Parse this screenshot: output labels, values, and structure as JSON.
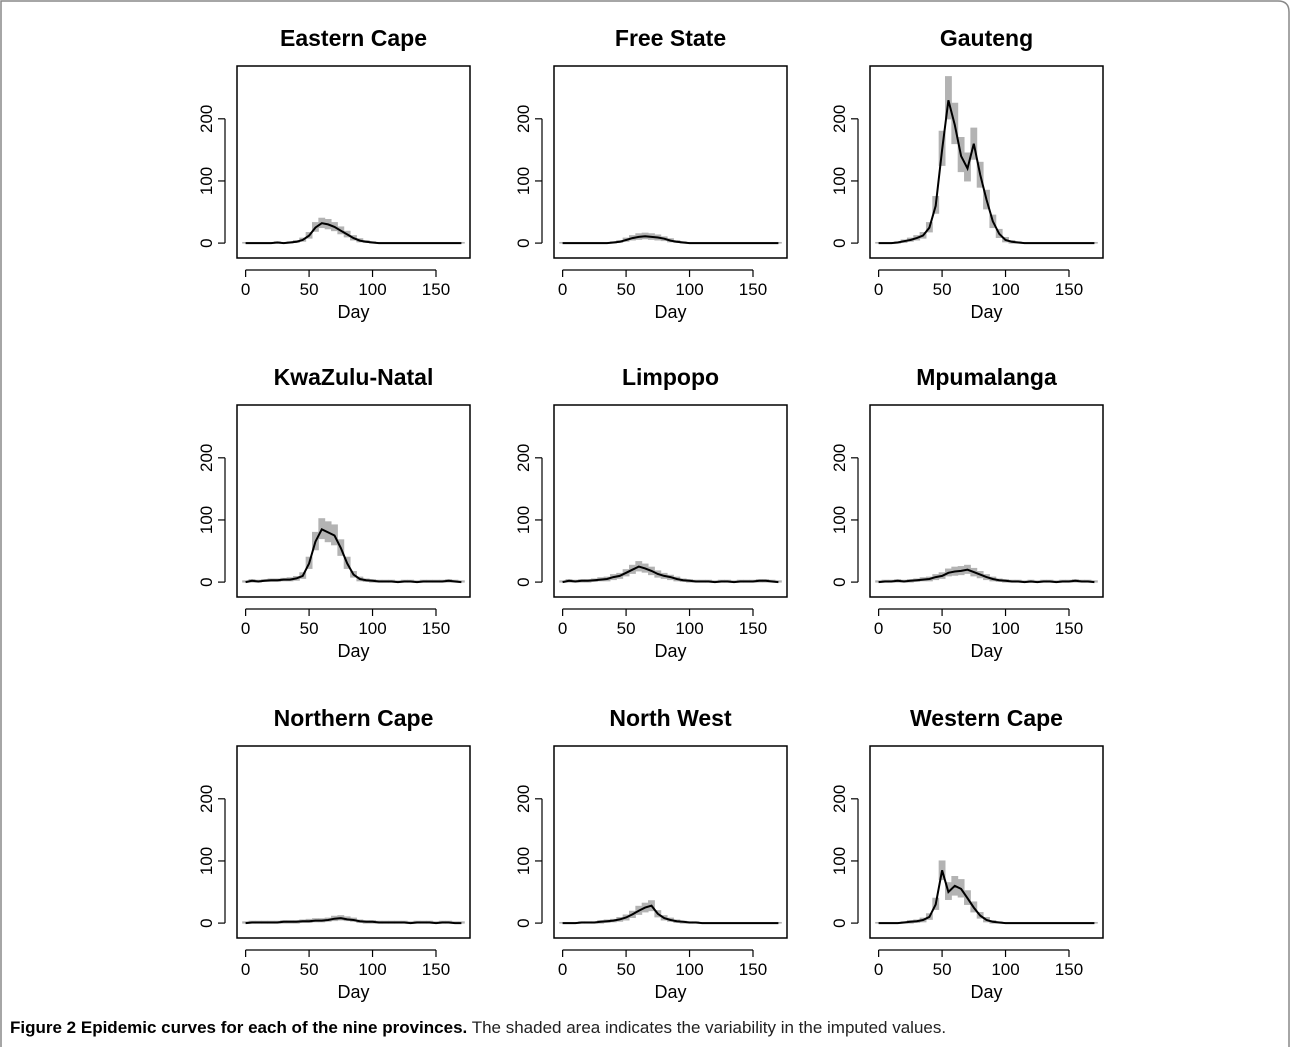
{
  "chart_data": [
    {
      "type": "line",
      "title": "Eastern Cape",
      "xlabel": "Day",
      "color": "#000000",
      "band_color": "#b3b3b3",
      "xlim": [
        -6.8,
        176.8
      ],
      "ylim": [
        -24,
        285
      ],
      "xticks": [
        0,
        50,
        100,
        150
      ],
      "yticks": [
        0,
        100,
        200
      ],
      "x": [
        0,
        5,
        10,
        15,
        20,
        25,
        30,
        35,
        40,
        45,
        50,
        55,
        60,
        65,
        70,
        75,
        80,
        85,
        90,
        95,
        100,
        105,
        110,
        115,
        120,
        125,
        130,
        135,
        140,
        145,
        150,
        155,
        160,
        165,
        170
      ],
      "values": [
        0,
        0,
        0,
        0,
        0,
        1,
        0,
        1,
        2,
        5,
        12,
        25,
        32,
        30,
        26,
        20,
        14,
        8,
        4,
        2,
        1,
        0,
        0,
        0,
        0,
        0,
        0,
        0,
        0,
        0,
        0,
        0,
        0,
        0,
        0
      ],
      "lower": [
        0,
        0,
        0,
        0,
        0,
        0,
        0,
        0,
        1,
        3,
        8,
        19,
        25,
        23,
        20,
        15,
        10,
        5,
        2,
        1,
        0,
        0,
        0,
        0,
        0,
        0,
        0,
        0,
        0,
        0,
        0,
        0,
        0,
        0,
        0
      ],
      "upper": [
        1,
        1,
        1,
        1,
        1,
        2,
        1,
        2,
        4,
        8,
        17,
        33,
        40,
        38,
        33,
        26,
        19,
        12,
        7,
        4,
        2,
        1,
        1,
        1,
        1,
        1,
        1,
        1,
        1,
        1,
        1,
        1,
        1,
        1,
        1
      ]
    },
    {
      "type": "line",
      "title": "Free State",
      "xlabel": "Day",
      "color": "#000000",
      "band_color": "#b3b3b3",
      "xlim": [
        -6.8,
        176.8
      ],
      "ylim": [
        -24,
        285
      ],
      "xticks": [
        0,
        50,
        100,
        150
      ],
      "yticks": [
        0,
        100,
        200
      ],
      "x": [
        0,
        5,
        10,
        15,
        20,
        25,
        30,
        35,
        40,
        45,
        50,
        55,
        60,
        65,
        70,
        75,
        80,
        85,
        90,
        95,
        100,
        105,
        110,
        115,
        120,
        125,
        130,
        135,
        140,
        145,
        150,
        155,
        160,
        165,
        170
      ],
      "values": [
        0,
        0,
        0,
        0,
        0,
        0,
        0,
        0,
        1,
        2,
        5,
        8,
        10,
        11,
        10,
        9,
        7,
        4,
        2,
        1,
        0,
        0,
        0,
        0,
        0,
        0,
        0,
        0,
        0,
        0,
        0,
        0,
        0,
        0,
        0
      ],
      "lower": [
        0,
        0,
        0,
        0,
        0,
        0,
        0,
        0,
        0,
        1,
        3,
        5,
        6,
        7,
        6,
        5,
        4,
        2,
        1,
        0,
        0,
        0,
        0,
        0,
        0,
        0,
        0,
        0,
        0,
        0,
        0,
        0,
        0,
        0,
        0
      ],
      "upper": [
        1,
        1,
        1,
        1,
        1,
        1,
        1,
        1,
        2,
        4,
        8,
        12,
        15,
        16,
        15,
        13,
        10,
        7,
        4,
        2,
        1,
        1,
        1,
        1,
        1,
        1,
        1,
        1,
        1,
        1,
        1,
        1,
        1,
        1,
        1
      ]
    },
    {
      "type": "line",
      "title": "Gauteng",
      "xlabel": "Day",
      "color": "#000000",
      "band_color": "#b3b3b3",
      "xlim": [
        -6.8,
        176.8
      ],
      "ylim": [
        -24,
        285
      ],
      "xticks": [
        0,
        50,
        100,
        150
      ],
      "yticks": [
        0,
        100,
        200
      ],
      "x": [
        0,
        5,
        10,
        15,
        20,
        25,
        30,
        35,
        40,
        45,
        50,
        55,
        60,
        65,
        70,
        75,
        80,
        85,
        90,
        95,
        100,
        105,
        110,
        115,
        120,
        125,
        130,
        135,
        140,
        145,
        150,
        155,
        160,
        165,
        170
      ],
      "values": [
        0,
        0,
        0,
        1,
        3,
        5,
        8,
        12,
        25,
        60,
        150,
        230,
        190,
        140,
        120,
        160,
        110,
        70,
        35,
        15,
        5,
        2,
        1,
        0,
        0,
        0,
        0,
        0,
        0,
        0,
        0,
        0,
        0,
        0,
        0
      ],
      "lower": [
        0,
        0,
        0,
        0,
        1,
        3,
        5,
        8,
        18,
        48,
        125,
        200,
        160,
        115,
        100,
        135,
        90,
        55,
        25,
        9,
        2,
        0,
        0,
        0,
        0,
        0,
        0,
        0,
        0,
        0,
        0,
        0,
        0,
        0,
        0
      ],
      "upper": [
        1,
        1,
        1,
        2,
        5,
        8,
        12,
        17,
        33,
        75,
        180,
        268,
        225,
        170,
        145,
        185,
        130,
        85,
        45,
        22,
        9,
        4,
        2,
        1,
        1,
        1,
        1,
        1,
        1,
        1,
        1,
        1,
        1,
        1,
        1
      ]
    },
    {
      "type": "line",
      "title": "KwaZulu-Natal",
      "xlabel": "Day",
      "color": "#000000",
      "band_color": "#b3b3b3",
      "xlim": [
        -6.8,
        176.8
      ],
      "ylim": [
        -24,
        285
      ],
      "xticks": [
        0,
        50,
        100,
        150
      ],
      "yticks": [
        0,
        100,
        200
      ],
      "x": [
        0,
        5,
        10,
        15,
        20,
        25,
        30,
        35,
        40,
        45,
        50,
        55,
        60,
        65,
        70,
        75,
        80,
        85,
        90,
        95,
        100,
        105,
        110,
        115,
        120,
        125,
        130,
        135,
        140,
        145,
        150,
        155,
        160,
        165,
        170
      ],
      "values": [
        0,
        2,
        1,
        2,
        3,
        3,
        4,
        4,
        6,
        10,
        30,
        65,
        85,
        80,
        75,
        55,
        30,
        12,
        5,
        3,
        2,
        1,
        1,
        1,
        0,
        1,
        1,
        0,
        1,
        1,
        1,
        1,
        2,
        1,
        0
      ],
      "lower": [
        0,
        0,
        0,
        1,
        1,
        1,
        2,
        2,
        3,
        6,
        22,
        52,
        70,
        65,
        60,
        43,
        22,
        8,
        2,
        1,
        0,
        0,
        0,
        0,
        0,
        0,
        0,
        0,
        0,
        0,
        0,
        0,
        0,
        0,
        0
      ],
      "upper": [
        2,
        4,
        3,
        4,
        5,
        5,
        6,
        7,
        9,
        15,
        40,
        80,
        102,
        97,
        92,
        68,
        40,
        17,
        8,
        5,
        4,
        3,
        3,
        3,
        2,
        3,
        3,
        2,
        3,
        3,
        3,
        3,
        4,
        3,
        2
      ]
    },
    {
      "type": "line",
      "title": "Limpopo",
      "xlabel": "Day",
      "color": "#000000",
      "band_color": "#b3b3b3",
      "xlim": [
        -6.8,
        176.8
      ],
      "ylim": [
        -24,
        285
      ],
      "xticks": [
        0,
        50,
        100,
        150
      ],
      "yticks": [
        0,
        100,
        200
      ],
      "x": [
        0,
        5,
        10,
        15,
        20,
        25,
        30,
        35,
        40,
        45,
        50,
        55,
        60,
        65,
        70,
        75,
        80,
        85,
        90,
        95,
        100,
        105,
        110,
        115,
        120,
        125,
        130,
        135,
        140,
        145,
        150,
        155,
        160,
        165,
        170
      ],
      "values": [
        0,
        2,
        1,
        2,
        2,
        3,
        4,
        5,
        8,
        10,
        15,
        20,
        25,
        22,
        18,
        13,
        10,
        8,
        5,
        3,
        2,
        1,
        1,
        1,
        0,
        1,
        1,
        0,
        1,
        1,
        1,
        2,
        2,
        1,
        0
      ],
      "lower": [
        0,
        0,
        0,
        0,
        0,
        1,
        2,
        2,
        4,
        6,
        10,
        14,
        18,
        16,
        12,
        8,
        6,
        4,
        2,
        1,
        0,
        0,
        0,
        0,
        0,
        0,
        0,
        0,
        0,
        0,
        0,
        0,
        0,
        0,
        0
      ],
      "upper": [
        2,
        4,
        3,
        4,
        4,
        5,
        7,
        8,
        12,
        14,
        20,
        27,
        33,
        29,
        24,
        18,
        14,
        11,
        8,
        5,
        4,
        3,
        3,
        3,
        2,
        3,
        3,
        2,
        3,
        3,
        3,
        4,
        4,
        3,
        2
      ]
    },
    {
      "type": "line",
      "title": "Mpumalanga",
      "xlabel": "Day",
      "color": "#000000",
      "band_color": "#b3b3b3",
      "xlim": [
        -6.8,
        176.8
      ],
      "ylim": [
        -24,
        285
      ],
      "xticks": [
        0,
        50,
        100,
        150
      ],
      "yticks": [
        0,
        100,
        200
      ],
      "x": [
        0,
        5,
        10,
        15,
        20,
        25,
        30,
        35,
        40,
        45,
        50,
        55,
        60,
        65,
        70,
        75,
        80,
        85,
        90,
        95,
        100,
        105,
        110,
        115,
        120,
        125,
        130,
        135,
        140,
        145,
        150,
        155,
        160,
        165,
        170
      ],
      "values": [
        0,
        1,
        1,
        2,
        1,
        2,
        3,
        4,
        5,
        8,
        10,
        15,
        17,
        18,
        20,
        16,
        12,
        8,
        5,
        3,
        2,
        1,
        1,
        0,
        1,
        0,
        1,
        1,
        0,
        1,
        1,
        2,
        1,
        1,
        0
      ],
      "lower": [
        0,
        0,
        0,
        0,
        0,
        0,
        1,
        2,
        2,
        4,
        6,
        10,
        11,
        12,
        14,
        10,
        7,
        4,
        2,
        1,
        0,
        0,
        0,
        0,
        0,
        0,
        0,
        0,
        0,
        0,
        0,
        0,
        0,
        0,
        0
      ],
      "upper": [
        2,
        3,
        3,
        4,
        3,
        4,
        5,
        7,
        8,
        12,
        15,
        21,
        24,
        25,
        27,
        22,
        17,
        12,
        8,
        5,
        4,
        3,
        3,
        2,
        3,
        2,
        3,
        3,
        2,
        3,
        3,
        4,
        3,
        3,
        2
      ]
    },
    {
      "type": "line",
      "title": "Northern Cape",
      "xlabel": "Day",
      "color": "#000000",
      "band_color": "#b3b3b3",
      "xlim": [
        -6.8,
        176.8
      ],
      "ylim": [
        -24,
        285
      ],
      "xticks": [
        0,
        50,
        100,
        150
      ],
      "yticks": [
        0,
        100,
        200
      ],
      "x": [
        0,
        5,
        10,
        15,
        20,
        25,
        30,
        35,
        40,
        45,
        50,
        55,
        60,
        65,
        70,
        75,
        80,
        85,
        90,
        95,
        100,
        105,
        110,
        115,
        120,
        125,
        130,
        135,
        140,
        145,
        150,
        155,
        160,
        165,
        170
      ],
      "values": [
        0,
        1,
        1,
        1,
        1,
        1,
        2,
        2,
        2,
        3,
        3,
        4,
        4,
        5,
        7,
        8,
        6,
        5,
        3,
        2,
        2,
        1,
        1,
        1,
        1,
        1,
        0,
        1,
        1,
        1,
        0,
        1,
        1,
        0,
        0
      ],
      "lower": [
        0,
        0,
        0,
        0,
        0,
        0,
        0,
        0,
        0,
        1,
        1,
        2,
        2,
        3,
        4,
        5,
        4,
        3,
        1,
        0,
        0,
        0,
        0,
        0,
        0,
        0,
        0,
        0,
        0,
        0,
        0,
        0,
        0,
        0,
        0
      ],
      "upper": [
        2,
        3,
        3,
        3,
        3,
        3,
        4,
        4,
        4,
        5,
        6,
        7,
        7,
        8,
        11,
        12,
        10,
        8,
        5,
        4,
        4,
        3,
        3,
        3,
        3,
        3,
        2,
        3,
        3,
        3,
        2,
        3,
        3,
        2,
        2
      ]
    },
    {
      "type": "line",
      "title": "North West",
      "xlabel": "Day",
      "color": "#000000",
      "band_color": "#b3b3b3",
      "xlim": [
        -6.8,
        176.8
      ],
      "ylim": [
        -24,
        285
      ],
      "xticks": [
        0,
        50,
        100,
        150
      ],
      "yticks": [
        0,
        100,
        200
      ],
      "x": [
        0,
        5,
        10,
        15,
        20,
        25,
        30,
        35,
        40,
        45,
        50,
        55,
        60,
        65,
        70,
        75,
        80,
        85,
        90,
        95,
        100,
        105,
        110,
        115,
        120,
        125,
        130,
        135,
        140,
        145,
        150,
        155,
        160,
        165,
        170
      ],
      "values": [
        0,
        0,
        0,
        1,
        1,
        1,
        2,
        3,
        4,
        6,
        9,
        14,
        20,
        25,
        28,
        15,
        8,
        5,
        3,
        2,
        1,
        1,
        0,
        0,
        0,
        0,
        0,
        0,
        0,
        0,
        0,
        0,
        0,
        0,
        0
      ],
      "lower": [
        0,
        0,
        0,
        0,
        0,
        0,
        0,
        1,
        2,
        3,
        5,
        9,
        14,
        18,
        20,
        10,
        5,
        3,
        1,
        0,
        0,
        0,
        0,
        0,
        0,
        0,
        0,
        0,
        0,
        0,
        0,
        0,
        0,
        0,
        0
      ],
      "upper": [
        1,
        1,
        1,
        2,
        2,
        2,
        4,
        5,
        6,
        9,
        13,
        19,
        27,
        32,
        36,
        20,
        12,
        8,
        5,
        3,
        2,
        2,
        1,
        1,
        1,
        1,
        1,
        1,
        1,
        1,
        1,
        1,
        1,
        1,
        1
      ]
    },
    {
      "type": "line",
      "title": "Western Cape",
      "xlabel": "Day",
      "color": "#000000",
      "band_color": "#b3b3b3",
      "xlim": [
        -6.8,
        176.8
      ],
      "ylim": [
        -24,
        285
      ],
      "xticks": [
        0,
        50,
        100,
        150
      ],
      "yticks": [
        0,
        100,
        200
      ],
      "x": [
        0,
        5,
        10,
        15,
        20,
        25,
        30,
        35,
        40,
        45,
        50,
        55,
        60,
        65,
        70,
        75,
        80,
        85,
        90,
        95,
        100,
        105,
        110,
        115,
        120,
        125,
        130,
        135,
        140,
        145,
        150,
        155,
        160,
        165,
        170
      ],
      "values": [
        0,
        0,
        0,
        0,
        1,
        2,
        3,
        5,
        10,
        30,
        85,
        50,
        60,
        55,
        40,
        25,
        12,
        5,
        2,
        1,
        0,
        0,
        0,
        0,
        0,
        0,
        0,
        0,
        0,
        0,
        0,
        0,
        0,
        0,
        0
      ],
      "lower": [
        0,
        0,
        0,
        0,
        0,
        0,
        1,
        2,
        6,
        22,
        70,
        38,
        45,
        42,
        30,
        18,
        8,
        2,
        0,
        0,
        0,
        0,
        0,
        0,
        0,
        0,
        0,
        0,
        0,
        0,
        0,
        0,
        0,
        0,
        0
      ],
      "upper": [
        1,
        1,
        1,
        1,
        2,
        4,
        5,
        8,
        15,
        40,
        100,
        65,
        75,
        70,
        52,
        34,
        17,
        9,
        4,
        2,
        1,
        1,
        1,
        1,
        1,
        1,
        1,
        1,
        1,
        1,
        1,
        1,
        1,
        1,
        1
      ]
    }
  ],
  "caption": {
    "label": "Figure 2",
    "title": "Epidemic curves for each of the nine provinces.",
    "text": "The shaded area indicates the variability in the imputed values."
  }
}
